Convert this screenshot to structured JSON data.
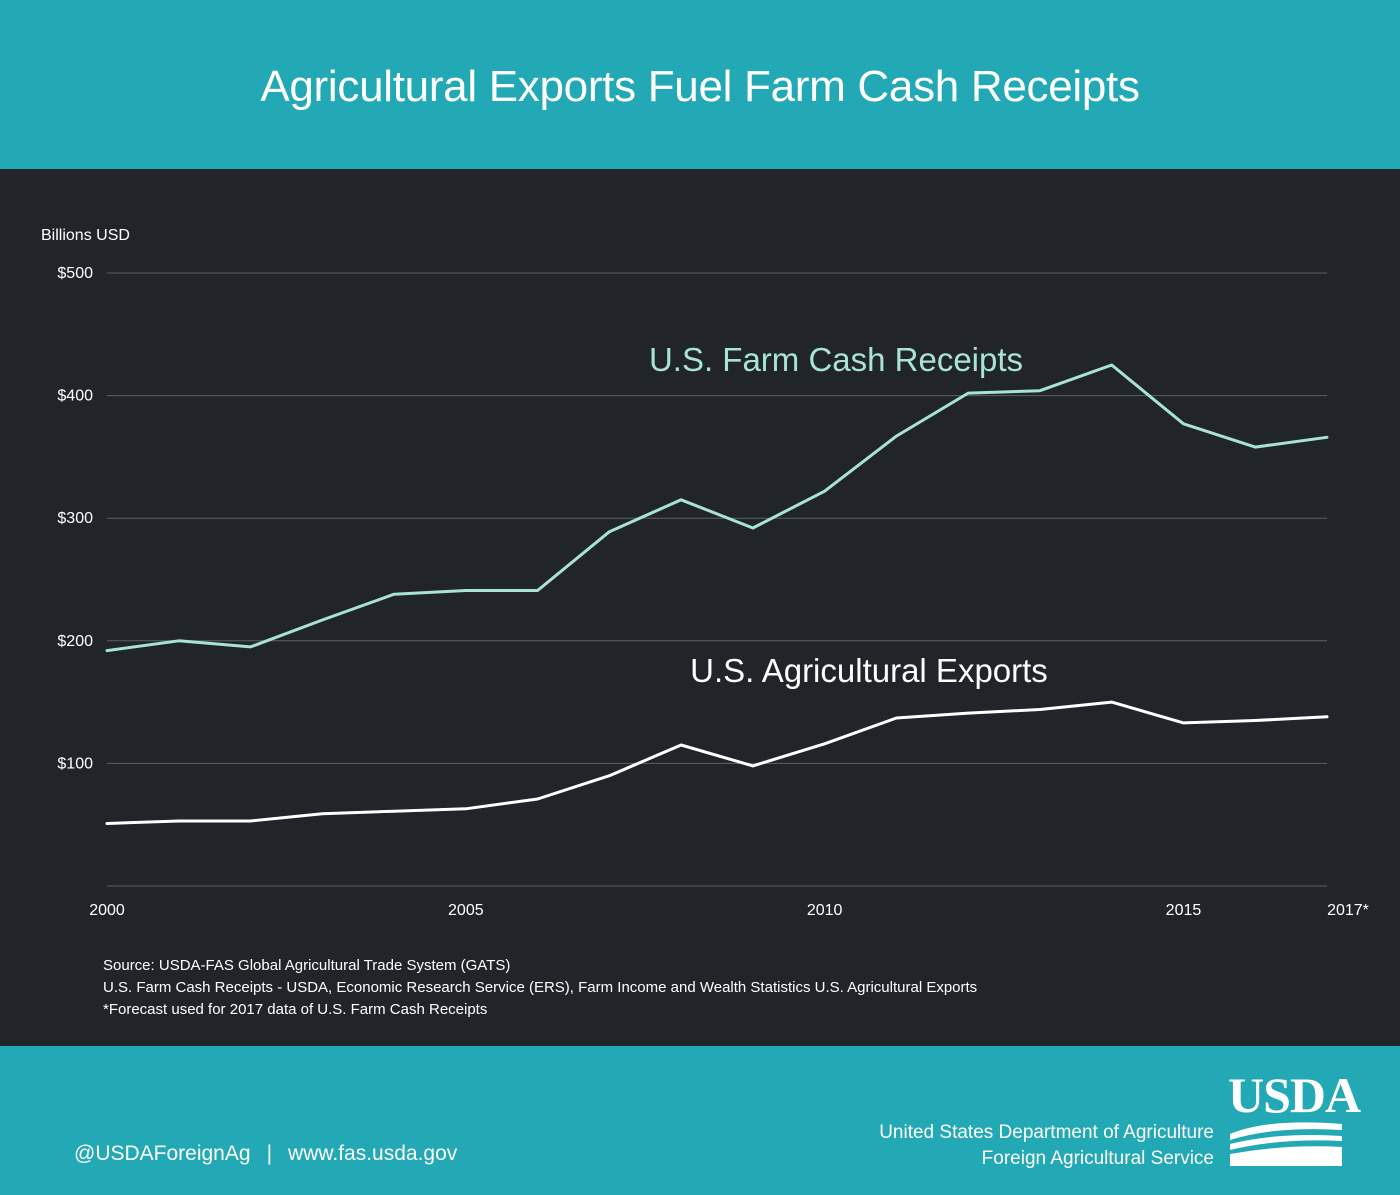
{
  "title": "Agricultural Exports Fuel Farm Cash Receipts",
  "colors": {
    "header_bg": "#23a9b5",
    "chart_bg": "#212529",
    "receipts_line": "#a8e3d6",
    "exports_line": "#ffffff",
    "grid": "#5b6065"
  },
  "chart_data": {
    "type": "line",
    "title": "",
    "ylabel": "Billions USD",
    "xlabel": "",
    "x": [
      2000,
      2001,
      2002,
      2003,
      2004,
      2005,
      2006,
      2007,
      2008,
      2009,
      2010,
      2011,
      2012,
      2013,
      2014,
      2015,
      2016,
      2017
    ],
    "xlim": [
      2000,
      2017
    ],
    "ylim": [
      0,
      500
    ],
    "yticks": [
      100,
      200,
      300,
      400,
      500
    ],
    "ytick_labels": [
      "$100",
      "$200",
      "$300",
      "$400",
      "$500"
    ],
    "xticks": [
      2000,
      2005,
      2010,
      2015,
      2017
    ],
    "xtick_labels": [
      "2000",
      "2005",
      "2010",
      "2015",
      "2017*"
    ],
    "grid": true,
    "series": [
      {
        "name": "U.S. Farm Cash Receipts",
        "color": "#a8e3d6",
        "values": [
          192,
          200,
          195,
          217,
          238,
          241,
          241,
          289,
          315,
          292,
          322,
          367,
          402,
          404,
          425,
          377,
          358,
          366
        ]
      },
      {
        "name": "U.S. Agricultural Exports",
        "color": "#ffffff",
        "values": [
          51,
          53,
          53,
          59,
          61,
          63,
          71,
          90,
          115,
          98,
          116,
          137,
          141,
          144,
          150,
          133,
          135,
          138
        ]
      }
    ]
  },
  "source": {
    "line1": "Source: USDA-FAS Global Agricultural Trade System (GATS)",
    "line2": "U.S. Farm Cash Receipts - USDA, Economic Research Service (ERS), Farm Income and Wealth Statistics U.S. Agricultural Exports",
    "line3": "*Forecast used for 2017 data of  U.S. Farm Cash Receipts"
  },
  "footer": {
    "twitter": "@USDAForeignAg",
    "separator": "|",
    "website": "www.fas.usda.gov",
    "agency_line1": "United States Department of Agriculture",
    "agency_line2": "Foreign Agricultural Service",
    "logo_text": "USDA"
  }
}
